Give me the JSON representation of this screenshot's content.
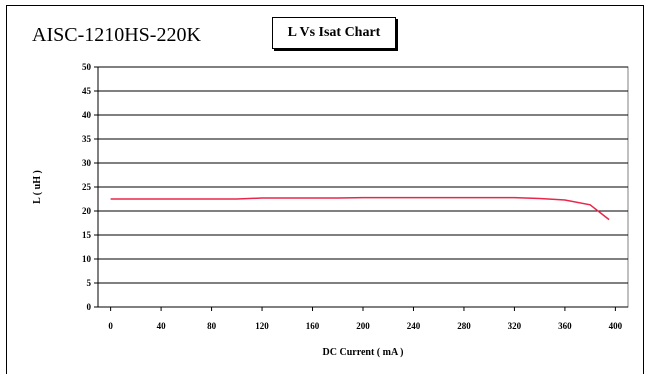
{
  "header": {
    "part_number": "AISC-1210HS-220K",
    "chart_title": "L Vs Isat Chart"
  },
  "chart_data": {
    "type": "line",
    "title": "L Vs Isat Chart",
    "xlabel": "DC Current ( mA )",
    "ylabel": "L ( uH )",
    "xlim": [
      -10,
      410
    ],
    "ylim": [
      0,
      50
    ],
    "x_ticks": [
      0,
      40,
      80,
      120,
      160,
      200,
      240,
      280,
      320,
      360,
      400
    ],
    "y_ticks": [
      0,
      5,
      10,
      15,
      20,
      25,
      30,
      35,
      40,
      45,
      50
    ],
    "grid": "horizontal",
    "legend": "none",
    "series": [
      {
        "color": "#e8274b",
        "points": [
          [
            0,
            22.5
          ],
          [
            50,
            22.5
          ],
          [
            100,
            22.5
          ],
          [
            120,
            22.7
          ],
          [
            150,
            22.7
          ],
          [
            180,
            22.7
          ],
          [
            200,
            22.8
          ],
          [
            250,
            22.8
          ],
          [
            300,
            22.8
          ],
          [
            320,
            22.8
          ],
          [
            340,
            22.6
          ],
          [
            360,
            22.3
          ],
          [
            380,
            21.3
          ],
          [
            395,
            18.2
          ]
        ]
      }
    ]
  }
}
